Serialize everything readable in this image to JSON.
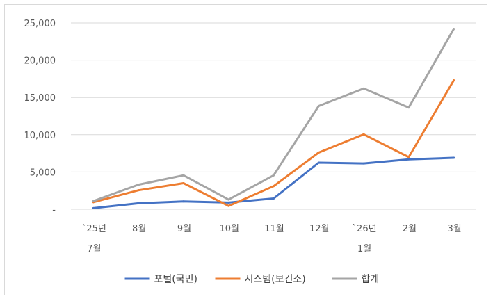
{
  "chart_data": {
    "type": "line",
    "title": "",
    "xlabel": "",
    "ylabel": "",
    "categories": [
      [
        "`25년",
        "7월"
      ],
      [
        "8월"
      ],
      [
        "9월"
      ],
      [
        "10월"
      ],
      [
        "11월"
      ],
      [
        "12월"
      ],
      [
        "`26년",
        "1월"
      ],
      [
        "2월"
      ],
      [
        "3월"
      ]
    ],
    "ylim": [
      0,
      25000
    ],
    "yticks": [
      0,
      5000,
      10000,
      15000,
      20000,
      25000
    ],
    "ytick_labels": [
      "-",
      "5,000",
      "10,000",
      "15,000",
      "20,000",
      "25,000"
    ],
    "grid": true,
    "legend_position": "bottom",
    "series": [
      {
        "name": "포털(국민)",
        "color": "#4472c4",
        "values": [
          150,
          800,
          1050,
          900,
          1450,
          6250,
          6150,
          6700,
          6900
        ]
      },
      {
        "name": "시스템(보건소)",
        "color": "#ed7d31",
        "values": [
          950,
          2550,
          3500,
          450,
          3100,
          7600,
          10050,
          7000,
          17300
        ]
      },
      {
        "name": "합계",
        "color": "#a5a5a5",
        "values": [
          1100,
          3300,
          4550,
          1300,
          4550,
          13850,
          16200,
          13650,
          24200
        ]
      }
    ]
  }
}
